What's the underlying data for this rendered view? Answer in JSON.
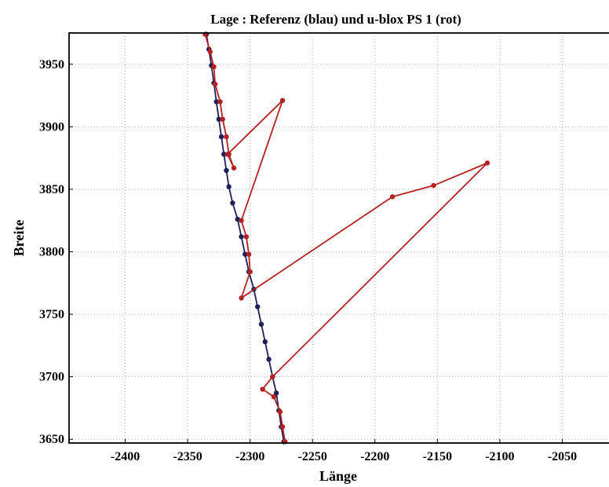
{
  "chart_data": {
    "type": "line",
    "title": "Lage : Referenz (blau) und  u-blox PS 1  (rot)",
    "xlabel": "Länge",
    "ylabel": "Breite",
    "xlim": [
      -2445,
      -2005
    ],
    "ylim": [
      3647,
      3975
    ],
    "xticks": [
      -2400,
      -2350,
      -2300,
      -2250,
      -2200,
      -2150,
      -2100,
      -2050
    ],
    "yticks": [
      3650,
      3700,
      3750,
      3800,
      3850,
      3900,
      3950
    ],
    "grid": true,
    "colors": {
      "reference": "#1f1f5a",
      "ublox": "#b52020",
      "frame": "#000000"
    },
    "series": [
      {
        "key": "reference",
        "points": [
          [
            -2335,
            3974
          ],
          [
            -2333,
            3962
          ],
          [
            -2331,
            3949
          ],
          [
            -2329,
            3935
          ],
          [
            -2327,
            3920
          ],
          [
            -2325,
            3906
          ],
          [
            -2323,
            3892
          ],
          [
            -2321,
            3878
          ],
          [
            -2319,
            3865
          ],
          [
            -2317,
            3852
          ],
          [
            -2314,
            3839
          ],
          [
            -2310,
            3826
          ],
          [
            -2307,
            3812
          ],
          [
            -2304,
            3798
          ],
          [
            -2301,
            3784
          ],
          [
            -2297,
            3770
          ],
          [
            -2294,
            3756
          ],
          [
            -2291,
            3742
          ],
          [
            -2288,
            3728
          ],
          [
            -2285,
            3714
          ],
          [
            -2282,
            3700
          ],
          [
            -2279,
            3687
          ],
          [
            -2277,
            3673
          ],
          [
            -2275,
            3660
          ],
          [
            -2273,
            3648
          ]
        ]
      },
      {
        "key": "ublox",
        "points": [
          [
            -2336,
            3974
          ],
          [
            -2332,
            3960
          ],
          [
            -2329,
            3948
          ],
          [
            -2328,
            3934
          ],
          [
            -2324,
            3920
          ],
          [
            -2322,
            3906
          ],
          [
            -2319,
            3892
          ],
          [
            -2317,
            3878
          ],
          [
            -2313,
            3867
          ],
          [
            -2318,
            3878
          ],
          [
            -2274,
            3921
          ],
          [
            -2307,
            3825
          ],
          [
            -2303,
            3812
          ],
          [
            -2301,
            3798
          ],
          [
            -2300,
            3784
          ],
          [
            -2307,
            3763
          ],
          [
            -2186,
            3844
          ],
          [
            -2153,
            3853
          ],
          [
            -2110,
            3871
          ],
          [
            -2282,
            3700
          ],
          [
            -2290,
            3690
          ],
          [
            -2281,
            3684
          ],
          [
            -2276,
            3672
          ],
          [
            -2274,
            3660
          ],
          [
            -2272,
            3648
          ]
        ]
      }
    ]
  }
}
